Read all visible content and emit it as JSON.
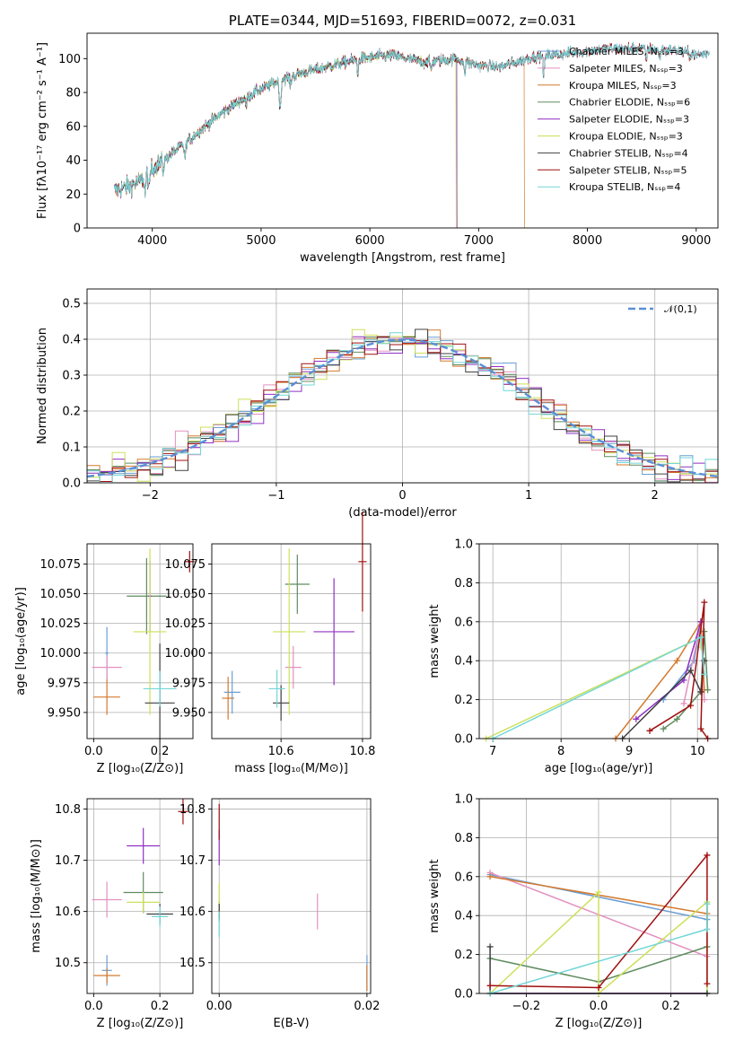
{
  "colors": [
    "#6a9fd4",
    "#e391c0",
    "#d47a2e",
    "#5f8c5f",
    "#9030c4",
    "#cde05a",
    "#404040",
    "#a01010",
    "#74d6d8"
  ],
  "chart_data": [
    {
      "id": "spectrum",
      "type": "line",
      "title": "PLATE=0344, MJD=51693, FIBERID=0072, z=0.031",
      "xlabel": "wavelength [Angstrom, rest frame]",
      "ylabel": "Flux [fλ10⁻¹⁷ erg cm⁻² s⁻¹ A⁻¹]",
      "xlim": [
        3400,
        9200
      ],
      "ylim": [
        0,
        115
      ],
      "xticks": [
        "4000",
        "5000",
        "6000",
        "7000",
        "8000",
        "9000"
      ],
      "yticks": [
        "0",
        "20",
        "40",
        "60",
        "80",
        "100"
      ],
      "legend": "top-right",
      "series": [
        {
          "name": "Chabrier MILES, Nₛₛₚ=3",
          "color": "#6a9fd4"
        },
        {
          "name": "Salpeter MILES, Nₛₛₚ=3",
          "color": "#e391c0"
        },
        {
          "name": "Kroupa MILES, Nₛₛₚ=3",
          "color": "#d47a2e",
          "cutoff": 7420
        },
        {
          "name": "Chabrier ELODIE, Nₛₛₚ=6",
          "color": "#5f8c5f",
          "cutoff": 6800
        },
        {
          "name": "Salpeter ELODIE, Nₛₛₚ=3",
          "color": "#9030c4",
          "cutoff": 6800
        },
        {
          "name": "Kroupa ELODIE, Nₛₛₚ=3",
          "color": "#cde05a",
          "cutoff": 6790
        },
        {
          "name": "Chabrier STELIB, Nₛₛₚ=4",
          "color": "#404040"
        },
        {
          "name": "Salpeter STELIB, Nₛₛₚ=5",
          "color": "#a01010"
        },
        {
          "name": "Kroupa STELIB, Nₛₛₚ=4",
          "color": "#74d6d8"
        }
      ],
      "continuum": [
        [
          3650,
          22
        ],
        [
          3800,
          25
        ],
        [
          3900,
          28
        ],
        [
          3950,
          33
        ],
        [
          4100,
          40
        ],
        [
          4300,
          50
        ],
        [
          4600,
          66
        ],
        [
          4800,
          75
        ],
        [
          5000,
          82
        ],
        [
          5200,
          88
        ],
        [
          5400,
          92
        ],
        [
          5600,
          95
        ],
        [
          5900,
          100
        ],
        [
          6200,
          102
        ],
        [
          6500,
          98
        ],
        [
          6800,
          100
        ],
        [
          7000,
          96
        ],
        [
          7200,
          95
        ],
        [
          7500,
          101
        ],
        [
          7800,
          103
        ],
        [
          8200,
          106
        ],
        [
          8500,
          106
        ],
        [
          8800,
          105
        ],
        [
          9000,
          102
        ],
        [
          9100,
          103
        ]
      ],
      "absorption": [
        [
          3934,
          10
        ],
        [
          3969,
          12
        ],
        [
          4102,
          6
        ],
        [
          4300,
          8
        ],
        [
          4861,
          5
        ],
        [
          5175,
          18
        ],
        [
          5270,
          5
        ],
        [
          5890,
          8
        ],
        [
          6563,
          5
        ],
        [
          6870,
          8
        ],
        [
          7600,
          10
        ],
        [
          8542,
          6
        ],
        [
          8662,
          6
        ]
      ]
    },
    {
      "id": "residuals",
      "type": "histogram",
      "xlabel": "(data-model)/error",
      "ylabel": "Normed distribution",
      "xlim": [
        -2.5,
        2.5
      ],
      "ylim": [
        0,
        0.54
      ],
      "xticks": [
        "−2",
        "−1",
        "0",
        "1",
        "2"
      ],
      "yticks": [
        "0.0",
        "0.1",
        "0.2",
        "0.3",
        "0.4",
        "0.5"
      ],
      "bin_width": 0.1,
      "legend": "top-right",
      "reference_name": "𝒩(0,1)",
      "reference_color": "#5b8fd6"
    },
    {
      "id": "age_vs_Z",
      "type": "scatter",
      "xlabel": "Z [log₁₀(Z/Z⊙)]",
      "ylabel": "age  [log₁₀(age/yr)]",
      "xlim": [
        -0.02,
        0.3
      ],
      "ylim": [
        9.928,
        10.092
      ],
      "xticks": [
        "0.0",
        "0.2"
      ],
      "yticks": [
        "9.950",
        "9.975",
        "10.000",
        "10.025",
        "10.050",
        "10.075"
      ],
      "points": [
        {
          "x": 0.04,
          "y": 10.0,
          "xerr": 0.005,
          "yerr": 0.022
        },
        {
          "x": 0.04,
          "y": 9.988,
          "xerr": 0.045,
          "yerr": 0.01
        },
        {
          "x": 0.04,
          "y": 9.963,
          "xerr": 0.04,
          "yerr": 0.015
        },
        {
          "x": 0.16,
          "y": 10.048,
          "xerr": 0.06,
          "yerr": 0.032
        },
        {
          "x": 0.17,
          "y": 10.048,
          "xerr": 0.005,
          "yerr": 0.03
        },
        {
          "x": 0.17,
          "y": 10.018,
          "xerr": 0.05,
          "yerr": 0.07
        },
        {
          "x": 0.2,
          "y": 9.958,
          "xerr": 0.045,
          "yerr": 0.05
        },
        {
          "x": 0.29,
          "y": 10.077,
          "xerr": 0.015,
          "yerr": 0.009
        },
        {
          "x": 0.2,
          "y": 9.97,
          "xerr": 0.05,
          "yerr": 0.015
        }
      ]
    },
    {
      "id": "age_vs_mass",
      "type": "scatter",
      "xlabel": "mass [log₁₀(M/M⊙)]",
      "ylabel": "",
      "xlim": [
        10.43,
        10.82
      ],
      "ylim": [
        9.928,
        10.092
      ],
      "xticks": [
        "10.6",
        "10.8"
      ],
      "yticks": [
        "9.950",
        "9.975",
        "10.000",
        "10.025",
        "10.050",
        "10.075"
      ],
      "points": [
        {
          "x": 10.48,
          "y": 9.967,
          "xerr": 0.02,
          "yerr": 0.018
        },
        {
          "x": 10.63,
          "y": 9.988,
          "xerr": 0.02,
          "yerr": 0.018
        },
        {
          "x": 10.47,
          "y": 9.962,
          "xerr": 0.015,
          "yerr": 0.018
        },
        {
          "x": 10.64,
          "y": 10.058,
          "xerr": 0.03,
          "yerr": 0.025
        },
        {
          "x": 10.73,
          "y": 10.018,
          "xerr": 0.05,
          "yerr": 0.045
        },
        {
          "x": 10.62,
          "y": 10.018,
          "xerr": 0.04,
          "yerr": 0.07
        },
        {
          "x": 10.6,
          "y": 9.958,
          "xerr": 0.02,
          "yerr": 0.015
        },
        {
          "x": 10.8,
          "y": 10.077,
          "xerr": 0.01,
          "yerr": 0.042
        },
        {
          "x": 10.59,
          "y": 9.97,
          "xerr": 0.02,
          "yerr": 0.016
        }
      ]
    },
    {
      "id": "weight_vs_age",
      "type": "line",
      "xlabel": "age  [log₁₀(age/yr)]",
      "ylabel": "mass weight",
      "xlim": [
        6.8,
        10.3
      ],
      "ylim": [
        0,
        1
      ],
      "xticks": [
        "7",
        "8",
        "9",
        "10"
      ],
      "yticks": [
        "0.0",
        "0.2",
        "0.4",
        "0.6",
        "0.8",
        "1.0"
      ],
      "series": [
        {
          "values": [
            [
              9.5,
              0.2
            ],
            [
              9.95,
              0.4
            ],
            [
              10.05,
              0.6
            ]
          ]
        },
        {
          "values": [
            [
              9.8,
              0.18
            ],
            [
              10.05,
              0.6
            ],
            [
              10.1,
              0.2
            ]
          ]
        },
        {
          "values": [
            [
              8.8,
              0.0
            ],
            [
              9.7,
              0.4
            ],
            [
              10.05,
              0.6
            ],
            [
              10.1,
              0.25
            ]
          ]
        },
        {
          "values": [
            [
              9.5,
              0.05
            ],
            [
              9.7,
              0.1
            ],
            [
              10.05,
              0.24
            ],
            [
              10.1,
              0.55
            ],
            [
              10.15,
              0.25
            ]
          ]
        },
        {
          "values": [
            [
              9.1,
              0.1
            ],
            [
              9.8,
              0.3
            ],
            [
              10.05,
              0.6
            ]
          ]
        },
        {
          "values": [
            [
              6.9,
              0.0
            ],
            [
              10.05,
              0.52
            ],
            [
              10.05,
              0.47
            ]
          ]
        },
        {
          "values": [
            [
              8.9,
              0.0
            ],
            [
              9.9,
              0.35
            ],
            [
              10.05,
              0.24
            ],
            [
              10.1,
              0.4
            ]
          ]
        },
        {
          "values": [
            [
              9.3,
              0.04
            ],
            [
              9.9,
              0.17
            ],
            [
              10.1,
              0.7
            ],
            [
              10.05,
              0.05
            ],
            [
              10.15,
              0.0
            ]
          ]
        },
        {
          "values": [
            [
              7.0,
              0.0
            ],
            [
              10.05,
              0.52
            ],
            [
              10.1,
              0.33
            ]
          ]
        }
      ]
    },
    {
      "id": "mass_vs_Z",
      "type": "scatter",
      "xlabel": "Z [log₁₀(Z/Z⊙)]",
      "ylabel": "mass [log₁₀(M/M⊙)]",
      "xlim": [
        -0.02,
        0.3
      ],
      "ylim": [
        10.44,
        10.82
      ],
      "xticks": [
        "0.0",
        "0.2"
      ],
      "yticks": [
        "10.5",
        "10.6",
        "10.7",
        "10.8"
      ],
      "points": [
        {
          "x": 0.04,
          "y": 10.485,
          "xerr": 0.015,
          "yerr": 0.03
        },
        {
          "x": 0.04,
          "y": 10.623,
          "xerr": 0.045,
          "yerr": 0.035
        },
        {
          "x": 0.04,
          "y": 10.475,
          "xerr": 0.04,
          "yerr": 0.015
        },
        {
          "x": 0.15,
          "y": 10.637,
          "xerr": 0.06,
          "yerr": 0.04
        },
        {
          "x": 0.15,
          "y": 10.728,
          "xerr": 0.05,
          "yerr": 0.035
        },
        {
          "x": 0.15,
          "y": 10.618,
          "xerr": 0.05,
          "yerr": 0.02
        },
        {
          "x": 0.2,
          "y": 10.595,
          "xerr": 0.04,
          "yerr": 0.02
        },
        {
          "x": 0.27,
          "y": 10.795,
          "xerr": 0.015,
          "yerr": 0.025
        },
        {
          "x": 0.2,
          "y": 10.59,
          "xerr": 0.025,
          "yerr": 0.02
        }
      ]
    },
    {
      "id": "mass_vs_EBV",
      "type": "scatter",
      "xlabel": "E(B-V)",
      "ylabel": "",
      "xlim": [
        -0.001,
        0.0205
      ],
      "ylim": [
        10.44,
        10.82
      ],
      "xticks": [
        "0.00",
        "0.02"
      ],
      "yticks": [
        "10.5",
        "10.6",
        "10.7",
        "10.8"
      ],
      "points": [
        {
          "x": 0.02,
          "y": 10.48,
          "xerr": 0.0,
          "yerr": 0.035
        },
        {
          "x": 0.0133,
          "y": 10.6,
          "xerr": 0.0,
          "yerr": 0.035
        },
        {
          "x": 0.02,
          "y": 10.47,
          "xerr": 0.0,
          "yerr": 0.025
        },
        {
          "x": 0.0,
          "y": 10.6,
          "xerr": 0.0,
          "yerr": 0.02
        },
        {
          "x": 0.0,
          "y": 10.725,
          "xerr": 0.0,
          "yerr": 0.035
        },
        {
          "x": 0.0,
          "y": 10.625,
          "xerr": 0.0,
          "yerr": 0.03
        },
        {
          "x": 0.0,
          "y": 10.6,
          "xerr": 0.0,
          "yerr": 0.015
        },
        {
          "x": 0.0,
          "y": 10.775,
          "xerr": 0.0,
          "yerr": 0.035
        },
        {
          "x": 0.0,
          "y": 10.575,
          "xerr": 0.0,
          "yerr": 0.025
        }
      ]
    },
    {
      "id": "weight_vs_Z",
      "type": "line",
      "xlabel": "Z [log₁₀(Z/Z⊙)]",
      "ylabel": "mass weight",
      "xlim": [
        -0.33,
        0.33
      ],
      "ylim": [
        0,
        1
      ],
      "xticks": [
        "−0.2",
        "0.0",
        "0.2"
      ],
      "yticks": [
        "0.0",
        "0.2",
        "0.4",
        "0.6",
        "0.8",
        "1.0"
      ],
      "series": [
        {
          "values": [
            [
              -0.3,
              0.61
            ],
            [
              0.3,
              0.38
            ],
            [
              0.3,
              0.0
            ]
          ]
        },
        {
          "values": [
            [
              -0.3,
              0.62
            ],
            [
              0.3,
              0.19
            ]
          ]
        },
        {
          "values": [
            [
              -0.3,
              0.6
            ],
            [
              0.3,
              0.41
            ]
          ]
        },
        {
          "values": [
            [
              -0.3,
              0.18
            ],
            [
              0.0,
              0.06
            ],
            [
              0.3,
              0.24
            ]
          ]
        },
        {
          "values": [
            [
              -0.3,
              0.0
            ],
            [
              0.3,
              0.0
            ]
          ]
        },
        {
          "values": [
            [
              -0.3,
              0.0
            ],
            [
              0.0,
              0.52
            ],
            [
              0.0,
              0.0
            ],
            [
              0.3,
              0.47
            ],
            [
              0.3,
              0.0
            ]
          ]
        },
        {
          "values": [
            [
              -0.3,
              0.24
            ],
            [
              -0.3,
              0.0
            ],
            [
              0.3,
              0.0
            ]
          ]
        },
        {
          "values": [
            [
              -0.3,
              0.04
            ],
            [
              0.0,
              0.03
            ],
            [
              0.3,
              0.71
            ],
            [
              0.3,
              0.05
            ]
          ]
        },
        {
          "values": [
            [
              -0.3,
              0.0
            ],
            [
              0.3,
              0.33
            ],
            [
              0.3,
              0.46
            ]
          ]
        }
      ]
    }
  ]
}
